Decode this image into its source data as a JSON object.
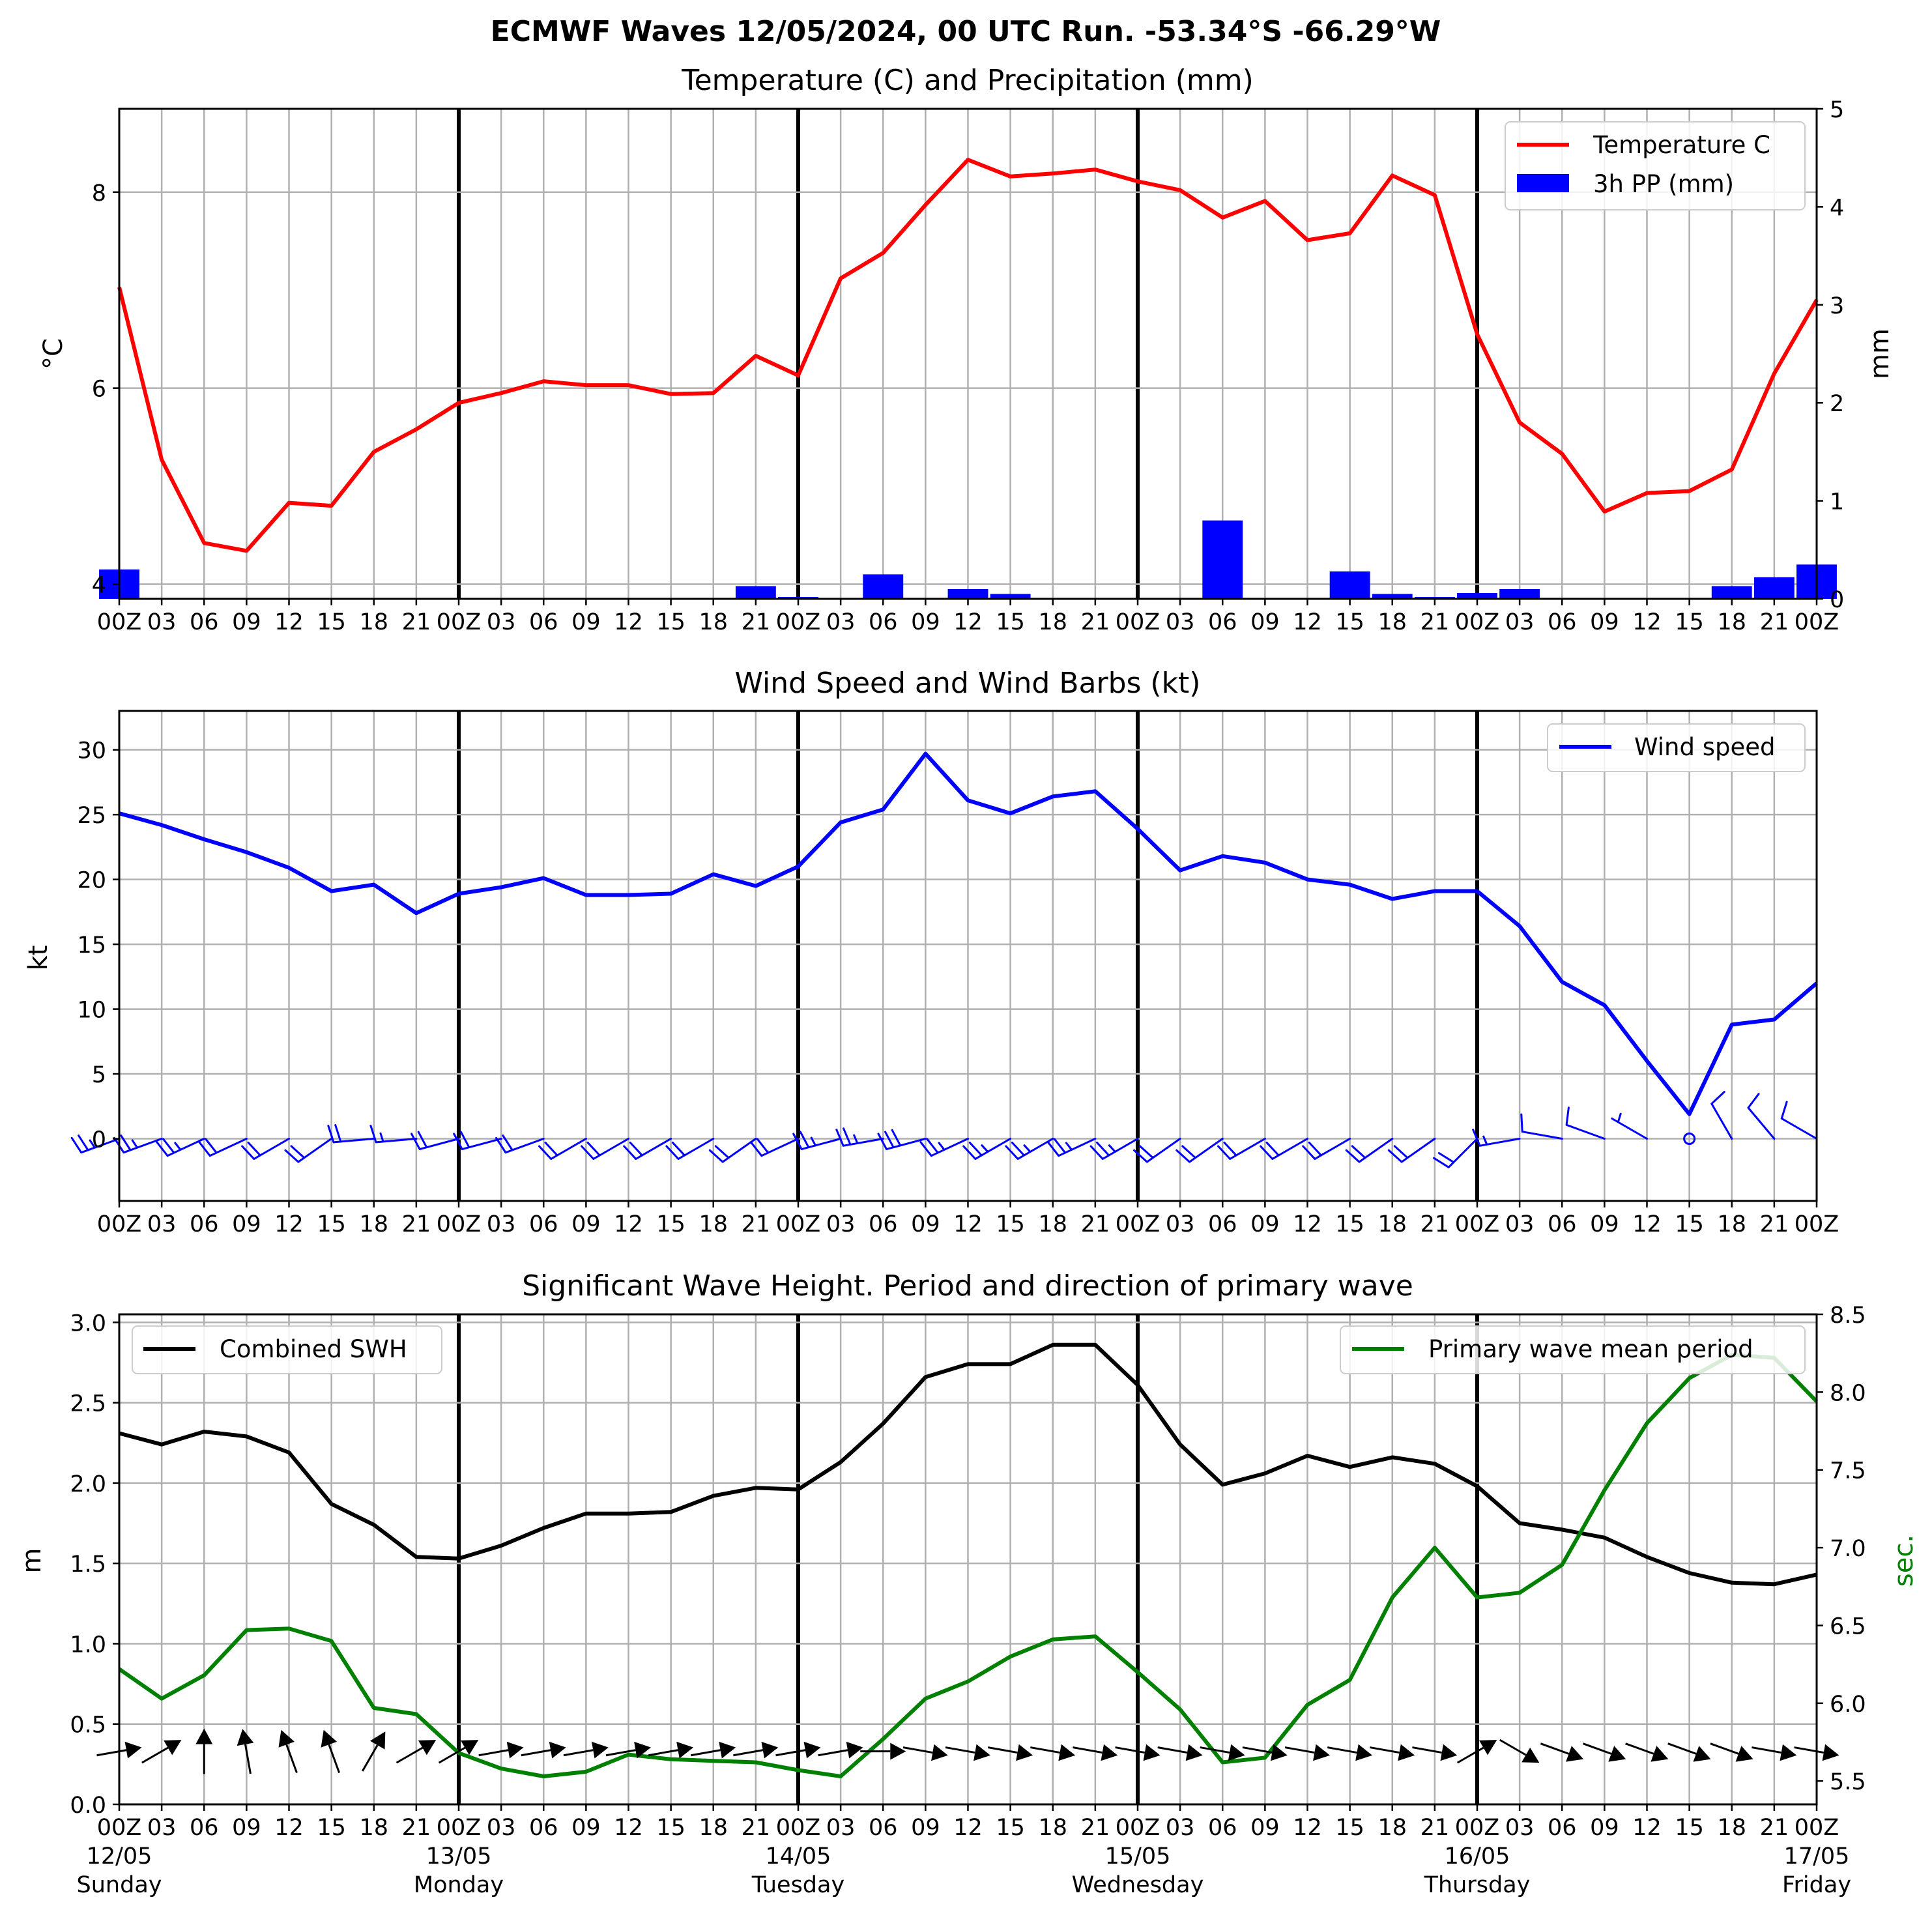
{
  "page_title": "ECMWF Waves 12/05/2024, 00 UTC Run. -53.34°S -66.29°W",
  "x_hour_ticks": [
    "00Z",
    "03",
    "06",
    "09",
    "12",
    "15",
    "18",
    "21",
    "00Z",
    "03",
    "06",
    "09",
    "12",
    "15",
    "18",
    "21",
    "00Z",
    "03",
    "06",
    "09",
    "12",
    "15",
    "18",
    "21",
    "00Z",
    "03",
    "06",
    "09",
    "12",
    "15",
    "18",
    "21",
    "00Z",
    "03",
    "06",
    "09",
    "12",
    "15",
    "18",
    "21",
    "00Z"
  ],
  "x_date_labels": [
    {
      "date": "12/05",
      "day": "Sunday"
    },
    {
      "date": "13/05",
      "day": "Monday"
    },
    {
      "date": "14/05",
      "day": "Tuesday"
    },
    {
      "date": "15/05",
      "day": "Wednesday"
    },
    {
      "date": "16/05",
      "day": "Thursday"
    },
    {
      "date": "17/05",
      "day": "Friday"
    }
  ],
  "chart_data": [
    {
      "type": "line",
      "title": "Temperature (C) and Precipitation (mm)",
      "x_unit": "hours from 12/05 00Z",
      "x": [
        0,
        3,
        6,
        9,
        12,
        15,
        18,
        21,
        24,
        27,
        30,
        33,
        36,
        39,
        42,
        45,
        48,
        51,
        54,
        57,
        60,
        63,
        66,
        69,
        72,
        75,
        78,
        81,
        84,
        87,
        90,
        93,
        96,
        99,
        102,
        105,
        108,
        111,
        114,
        117,
        120
      ],
      "ylabel": "°C",
      "ylim": [
        3.85,
        8.85
      ],
      "yticks": [
        4,
        6,
        8
      ],
      "y2label": "mm",
      "y2lim": [
        0,
        5
      ],
      "y2ticks": [
        0,
        1,
        2,
        3,
        4,
        5
      ],
      "grid": true,
      "legend": "top-right",
      "series": [
        {
          "name": "Temperature C",
          "type": "line",
          "color": "#ff0000",
          "axis": "left",
          "values": [
            7.03,
            5.27,
            4.42,
            4.34,
            4.83,
            4.8,
            5.35,
            5.58,
            5.85,
            5.95,
            6.07,
            6.03,
            6.03,
            5.94,
            5.95,
            6.33,
            6.13,
            7.12,
            7.38,
            7.87,
            8.33,
            8.16,
            8.19,
            8.23,
            8.11,
            8.02,
            7.74,
            7.91,
            7.51,
            7.58,
            8.17,
            7.97,
            6.55,
            5.65,
            5.33,
            4.74,
            4.93,
            4.95,
            5.17,
            6.15,
            6.9
          ]
        },
        {
          "name": "3h PP (mm)",
          "type": "bar",
          "color": "#0000ff",
          "axis": "right",
          "values": [
            0.3,
            0,
            0,
            0,
            0,
            0,
            0,
            0,
            0,
            0,
            0,
            0,
            0,
            0,
            0.01,
            0.13,
            0.02,
            0,
            0.25,
            0,
            0.1,
            0.05,
            0,
            0,
            0,
            0,
            0.8,
            0,
            0,
            0.28,
            0.05,
            0.02,
            0.06,
            0.1,
            0.01,
            0,
            0,
            0,
            0.13,
            0.22,
            0.35
          ]
        }
      ]
    },
    {
      "type": "line",
      "title": "Wind Speed and Wind Barbs (kt)",
      "x_unit": "hours from 12/05 00Z",
      "x": [
        0,
        3,
        6,
        9,
        12,
        15,
        18,
        21,
        24,
        27,
        30,
        33,
        36,
        39,
        42,
        45,
        48,
        51,
        54,
        57,
        60,
        63,
        66,
        69,
        72,
        75,
        78,
        81,
        84,
        87,
        90,
        93,
        96,
        99,
        102,
        105,
        108,
        111,
        114,
        117,
        120
      ],
      "ylabel": "kt",
      "ylim": [
        -4.8,
        33
      ],
      "yticks": [
        0,
        5,
        10,
        15,
        20,
        25,
        30
      ],
      "grid": true,
      "legend": "top-right",
      "series": [
        {
          "name": "Wind speed",
          "color": "#0000ff",
          "values": [
            25.1,
            24.2,
            23.1,
            22.1,
            20.9,
            19.1,
            19.6,
            17.4,
            18.9,
            19.4,
            20.1,
            18.8,
            18.8,
            18.9,
            20.4,
            19.5,
            21.0,
            24.4,
            25.4,
            29.7,
            26.1,
            25.1,
            26.4,
            26.8,
            23.9,
            20.7,
            21.8,
            21.3,
            20.0,
            19.6,
            18.5,
            19.1,
            19.1,
            16.4,
            12.1,
            10.3,
            6.0,
            1.9,
            8.8,
            9.2,
            12.0
          ]
        }
      ],
      "wind_barbs": {
        "color": "#0000ff",
        "direction_from_deg": [
          250,
          250,
          245,
          245,
          240,
          235,
          265,
          265,
          255,
          255,
          250,
          240,
          240,
          240,
          240,
          235,
          245,
          255,
          260,
          255,
          245,
          240,
          240,
          245,
          240,
          235,
          235,
          240,
          240,
          240,
          235,
          235,
          225,
          260,
          280,
          290,
          300,
          310,
          330,
          320,
          300
        ],
        "speed_kt": [
          25.1,
          24.2,
          23.1,
          22.1,
          20.9,
          19.1,
          19.6,
          17.4,
          18.9,
          19.4,
          20.1,
          18.8,
          18.8,
          18.9,
          20.4,
          19.5,
          21.0,
          24.4,
          25.4,
          29.7,
          26.1,
          25.1,
          26.4,
          26.8,
          23.9,
          20.7,
          21.8,
          21.3,
          20.0,
          19.6,
          18.5,
          19.1,
          19.1,
          16.4,
          12.1,
          10.3,
          6.0,
          1.9,
          8.8,
          9.2,
          12.0
        ]
      }
    },
    {
      "type": "line",
      "title": "Significant Wave Height. Period and direction of primary wave",
      "x_unit": "hours from 12/05 00Z",
      "x": [
        0,
        3,
        6,
        9,
        12,
        15,
        18,
        21,
        24,
        27,
        30,
        33,
        36,
        39,
        42,
        45,
        48,
        51,
        54,
        57,
        60,
        63,
        66,
        69,
        72,
        75,
        78,
        81,
        84,
        87,
        90,
        93,
        96,
        99,
        102,
        105,
        108,
        111,
        114,
        117,
        120
      ],
      "ylabel": "m",
      "ylim": [
        0,
        3.05
      ],
      "yticks": [
        0.0,
        0.5,
        1.0,
        1.5,
        2.0,
        2.5,
        3.0
      ],
      "y2label": "sec.",
      "y2lim": [
        5.35,
        8.5
      ],
      "y2ticks": [
        5.5,
        6.0,
        6.5,
        7.0,
        7.5,
        8.0,
        8.5
      ],
      "grid": true,
      "series": [
        {
          "name": "Combined SWH",
          "color": "#000000",
          "axis": "left",
          "legend": "top-left",
          "values": [
            2.31,
            2.24,
            2.32,
            2.29,
            2.19,
            1.87,
            1.74,
            1.54,
            1.53,
            1.61,
            1.72,
            1.81,
            1.81,
            1.82,
            1.92,
            1.97,
            1.96,
            2.13,
            2.37,
            2.66,
            2.74,
            2.74,
            2.86,
            2.86,
            2.61,
            2.24,
            1.99,
            2.06,
            2.17,
            2.1,
            2.16,
            2.12,
            1.98,
            1.75,
            1.71,
            1.66,
            1.54,
            1.44,
            1.38,
            1.37,
            1.43
          ]
        },
        {
          "name": "Primary wave mean period",
          "color": "#008000",
          "axis": "right",
          "legend": "top-right",
          "values": [
            6.22,
            6.03,
            6.18,
            6.47,
            6.48,
            6.4,
            5.97,
            5.93,
            5.68,
            5.58,
            5.53,
            5.56,
            5.67,
            5.64,
            5.63,
            5.62,
            5.57,
            5.53,
            5.77,
            6.03,
            6.14,
            6.3,
            6.41,
            6.43,
            6.2,
            5.96,
            5.62,
            5.65,
            5.99,
            6.15,
            6.68,
            7.0,
            6.68,
            6.71,
            6.89,
            7.37,
            7.8,
            8.09,
            8.24,
            8.22,
            7.94
          ]
        }
      ],
      "wave_direction_arrows": {
        "color": "#000000",
        "direction_to_deg": [
          80,
          60,
          0,
          350,
          340,
          340,
          30,
          60,
          60,
          80,
          80,
          80,
          80,
          80,
          80,
          80,
          80,
          80,
          90,
          100,
          100,
          100,
          100,
          100,
          100,
          100,
          100,
          100,
          100,
          100,
          100,
          100,
          60,
          120,
          110,
          110,
          110,
          110,
          110,
          100,
          100
        ]
      }
    }
  ]
}
